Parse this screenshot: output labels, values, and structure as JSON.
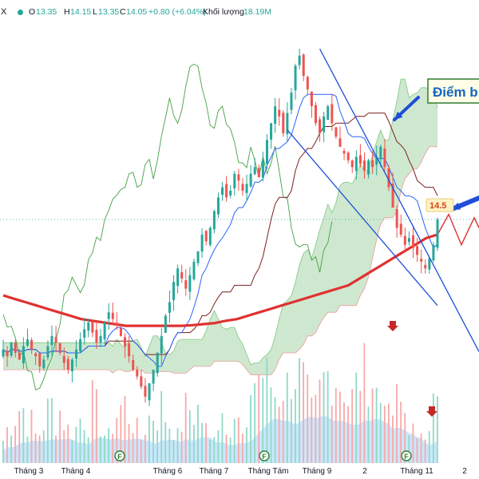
{
  "header": {
    "symbol_fragment": "X",
    "open_label": "O",
    "open": "13.35",
    "high_label": "H",
    "high": "14.15",
    "low_label": "L",
    "low": "13.35",
    "close_label": "C",
    "close": "14.05",
    "change": "+0.80 (+6.04%)",
    "volume_label": "Khối lượng",
    "volume": "18.19M"
  },
  "annotations": {
    "callout_text": "Điểm b",
    "price_tag": "14.5"
  },
  "earnings_marker": "F",
  "colors": {
    "up": "#26a69a",
    "down": "#ef5350",
    "ma": "#e03131",
    "trend": "#1f4fd8",
    "kijun": "#7b1f1f",
    "tenkan": "#2962ff",
    "chikou": "#43a047",
    "cloud_bull": "#a5d6a7",
    "cloud_bear": "#ffcdd2",
    "callout_bg": "#fffde7",
    "callout_border": "#2e7d32",
    "callout_text": "#1565c0"
  },
  "chart_data": {
    "type": "candlestick",
    "x_tick_labels": [
      "Tháng 3",
      "Tháng 4",
      "Tháng 6",
      "Tháng 7",
      "Tháng Tám",
      "Tháng 9",
      "2",
      "Tháng 11",
      "2"
    ],
    "ylim": [
      7.5,
      19.6
    ],
    "close": [
      10.2,
      10.0,
      10.4,
      10.1,
      9.9,
      10.3,
      10.5,
      10.2,
      10.0,
      9.7,
      9.9,
      10.3,
      10.6,
      10.4,
      10.1,
      9.8,
      9.6,
      9.9,
      10.2,
      10.5,
      10.8,
      11.0,
      10.7,
      10.4,
      10.6,
      11.0,
      11.3,
      11.1,
      10.9,
      10.6,
      10.3,
      10.0,
      9.6,
      9.4,
      9.1,
      8.8,
      9.2,
      9.6,
      10.1,
      10.6,
      11.2,
      11.6,
      12.2,
      12.6,
      12.3,
      12.0,
      12.4,
      12.8,
      13.1,
      13.6,
      13.4,
      13.8,
      14.3,
      14.7,
      15.0,
      14.7,
      14.9,
      15.4,
      15.2,
      14.9,
      15.1,
      15.4,
      15.6,
      15.3,
      15.8,
      16.4,
      16.9,
      17.4,
      17.1,
      16.6,
      17.2,
      17.8,
      18.6,
      18.9,
      18.3,
      17.9,
      17.4,
      16.9,
      16.6,
      17.1,
      17.4,
      16.9,
      16.5,
      16.2,
      16.0,
      15.8,
      15.6,
      15.9,
      15.7,
      15.5,
      15.8,
      15.6,
      15.9,
      16.2,
      15.6,
      15.0,
      14.4,
      13.8,
      13.6,
      13.3,
      13.5,
      13.2,
      13.0,
      12.8,
      12.6,
      12.9,
      13.3,
      14.05
    ],
    "ma_long": [
      11.8,
      11.7,
      11.6,
      11.5,
      11.4,
      11.3,
      11.2,
      11.1,
      11.05,
      11.0,
      10.95,
      10.9,
      10.9,
      10.9,
      10.9,
      10.9,
      10.9,
      10.92,
      10.95,
      10.98,
      11.05,
      11.1,
      11.2,
      11.3,
      11.4,
      11.5,
      11.6,
      11.7,
      11.8,
      11.9,
      12.0,
      12.1,
      12.3,
      12.5,
      12.7,
      12.9,
      13.1,
      13.3,
      13.5,
      13.6
    ],
    "trendline_upper": {
      "from": [
        78,
        19.1
      ],
      "to": [
        106,
        12.7
      ]
    },
    "trendline_lower": {
      "from": [
        70,
        16.7
      ],
      "to": [
        107,
        11.5
      ]
    },
    "volume_scale_max": 100
  }
}
